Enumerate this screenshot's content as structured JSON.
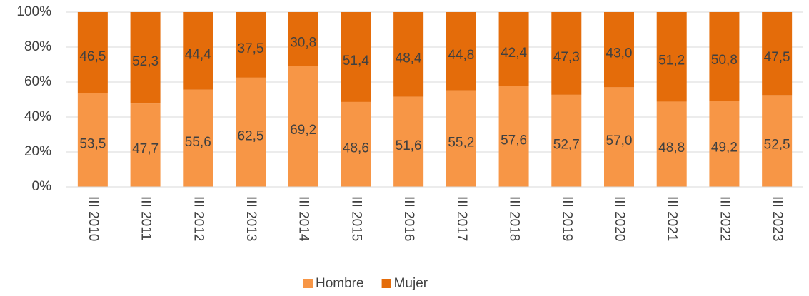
{
  "chart_data": {
    "type": "stacked_bar",
    "categories": [
      "III 2010",
      "III 2011",
      "III 2012",
      "III 2013",
      "III 2014",
      "III 2015",
      "III 2016",
      "III 2017",
      "III 2018",
      "III 2019",
      "III 2020",
      "III 2021",
      "III 2022",
      "III 2023"
    ],
    "series": [
      {
        "name": "Hombre",
        "color": "#f79646",
        "values": [
          53.5,
          47.7,
          55.6,
          62.5,
          69.2,
          48.6,
          51.6,
          55.2,
          57.6,
          52.7,
          57.0,
          48.8,
          49.2,
          52.5
        ],
        "value_labels": [
          "53,5",
          "47,7",
          "55,6",
          "62,5",
          "69,2",
          "48,6",
          "51,6",
          "55,2",
          "57,6",
          "52,7",
          "57,0",
          "48,8",
          "49,2",
          "52,5"
        ]
      },
      {
        "name": "Mujer",
        "color": "#e46c0a",
        "values": [
          46.5,
          52.3,
          44.4,
          37.5,
          30.8,
          51.4,
          48.4,
          44.8,
          42.4,
          47.3,
          43.0,
          51.2,
          50.8,
          47.5
        ],
        "value_labels": [
          "46,5",
          "52,3",
          "44,4",
          "37,5",
          "30,8",
          "51,4",
          "48,4",
          "44,8",
          "42,4",
          "47,3",
          "43,0",
          "51,2",
          "50,8",
          "47,5"
        ]
      }
    ],
    "ylim": [
      0,
      100
    ],
    "yticks": [
      {
        "value": 0,
        "label": "0%"
      },
      {
        "value": 20,
        "label": "20%"
      },
      {
        "value": 40,
        "label": "40%"
      },
      {
        "value": 60,
        "label": "60%"
      },
      {
        "value": 80,
        "label": "80%"
      },
      {
        "value": 100,
        "label": "100%"
      }
    ],
    "grid": true,
    "legend": "bottom"
  }
}
